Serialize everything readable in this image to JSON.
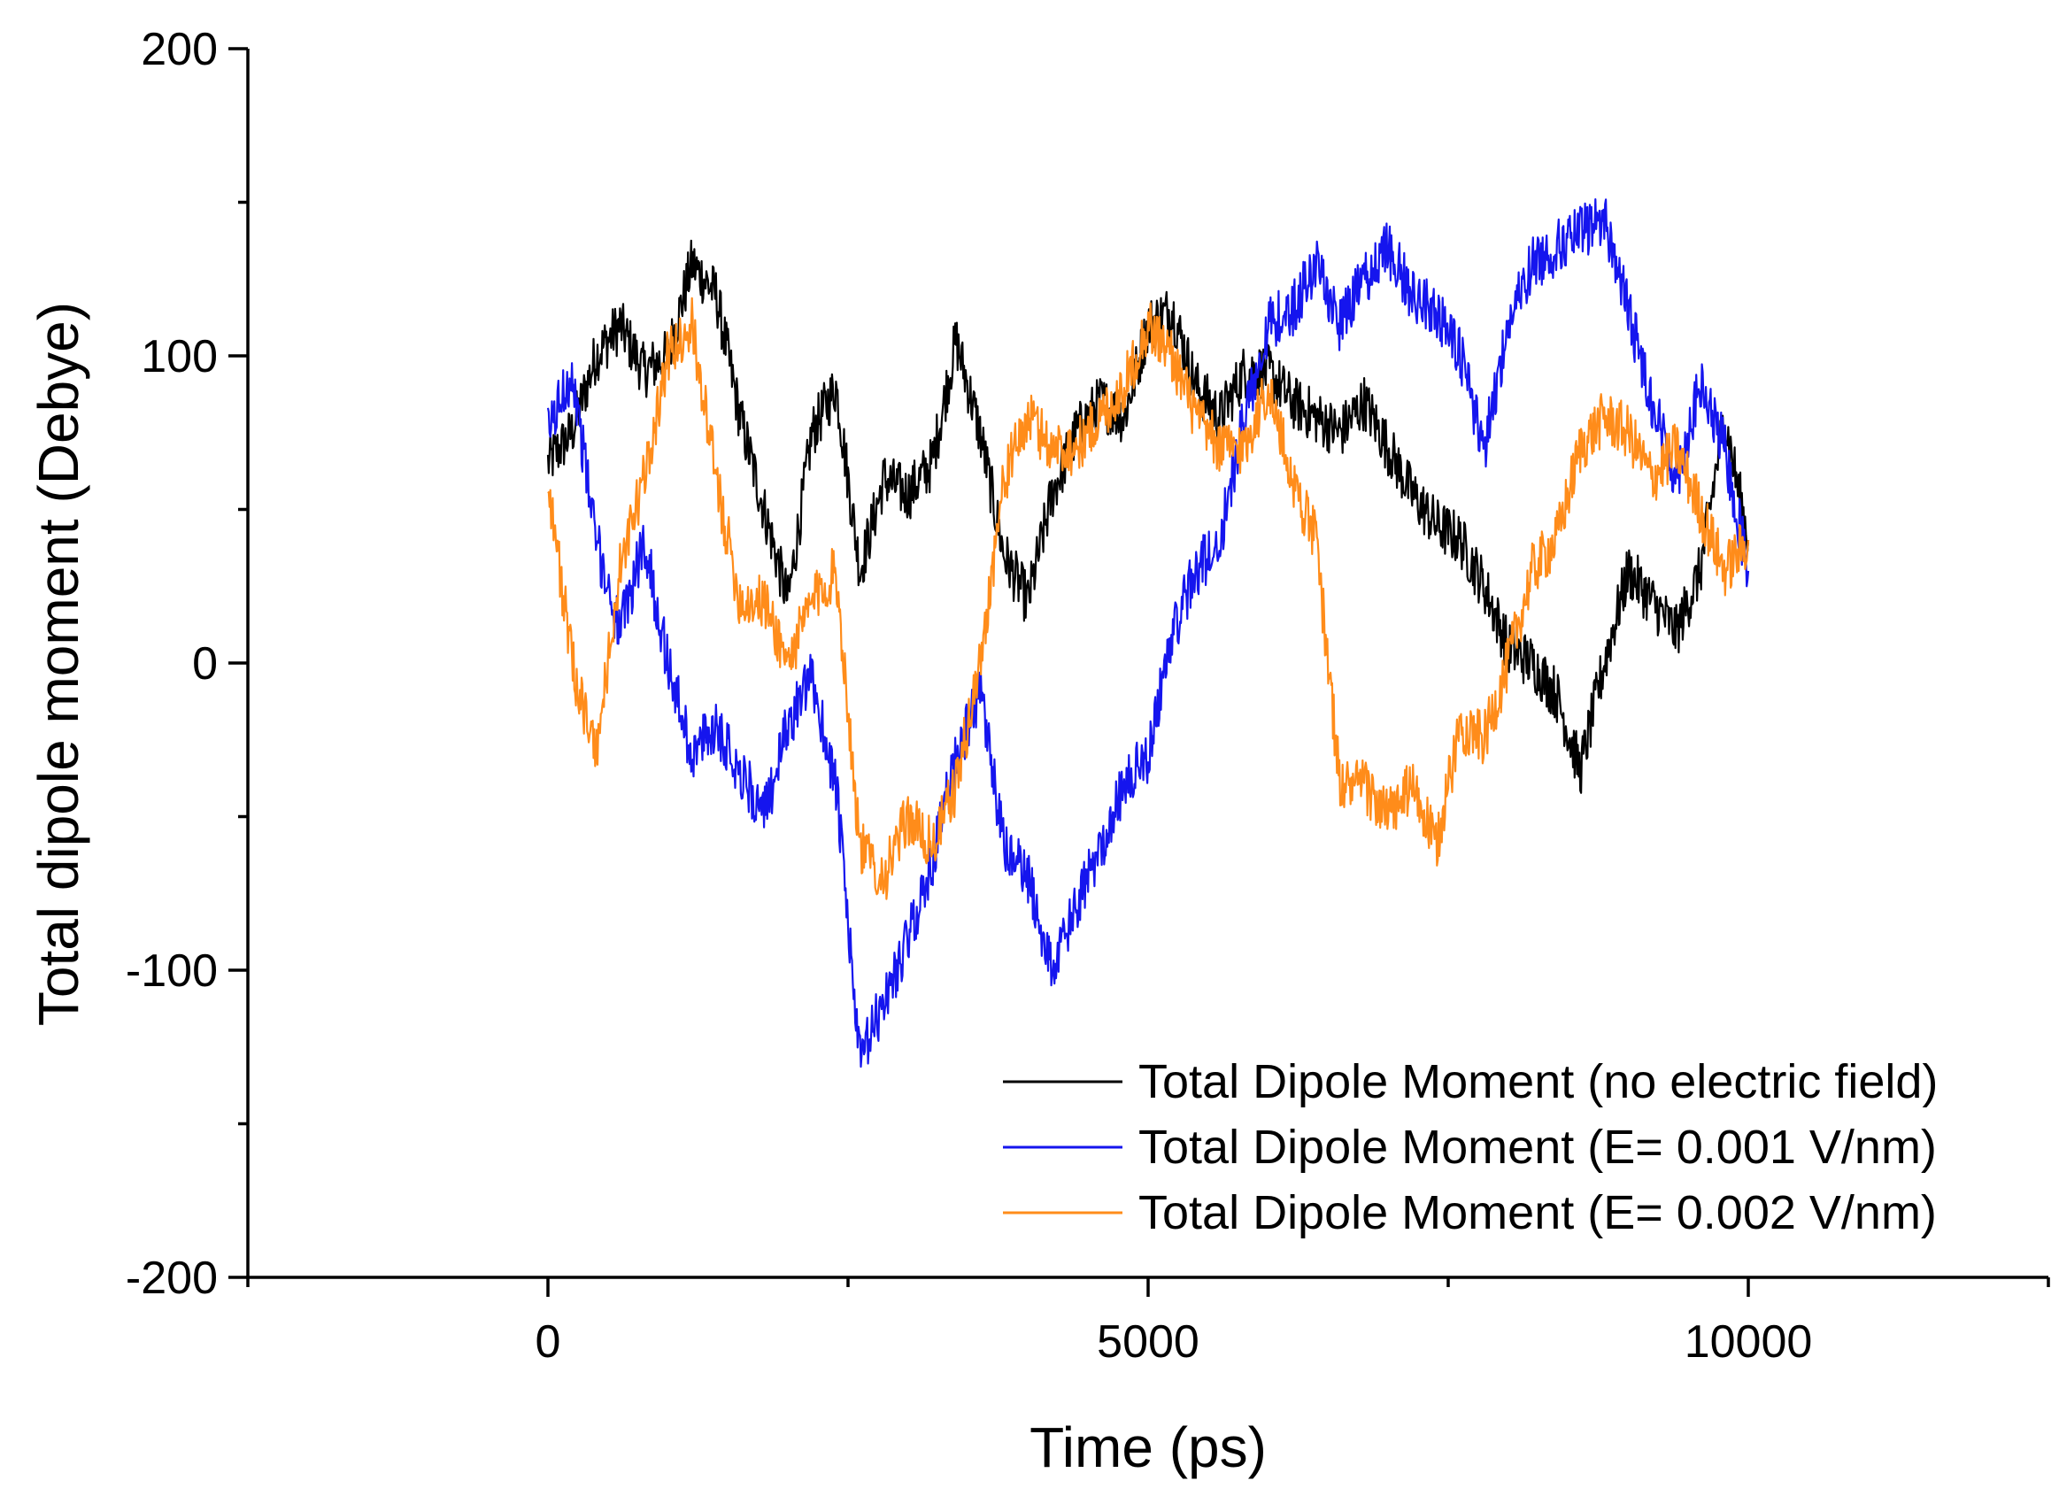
{
  "chart_data": {
    "type": "line",
    "title": "",
    "xlabel": "Time (ps)",
    "ylabel": "Total dipole moment (Debye)",
    "xlim": [
      -2500,
      12500
    ],
    "ylim": [
      -200,
      200
    ],
    "xticks": [
      0,
      5000,
      10000
    ],
    "yticks": [
      -200,
      -100,
      0,
      100,
      200
    ],
    "xtick_labels": [
      "0",
      "5000",
      "10000"
    ],
    "ytick_labels": [
      "-200",
      "-100",
      "0",
      "100",
      "200"
    ],
    "grid": false,
    "legend_position": "bottom-right",
    "noise_amplitude": 9,
    "series": [
      {
        "name": "Total Dipole Moment (no electric field)",
        "color": "#000000",
        "x": [
          0,
          200,
          400,
          600,
          800,
          1000,
          1200,
          1400,
          1600,
          1800,
          2000,
          2200,
          2400,
          2600,
          2800,
          3000,
          3200,
          3400,
          3600,
          3800,
          4000,
          4200,
          4400,
          4600,
          4800,
          5000,
          5200,
          5400,
          5600,
          5800,
          6000,
          6200,
          6400,
          6600,
          6800,
          7000,
          7200,
          7400,
          7600,
          7800,
          8000,
          8200,
          8400,
          8600,
          8800,
          9000,
          9200,
          9400,
          9600,
          9800,
          10000
        ],
        "values": [
          65,
          75,
          100,
          110,
          95,
          100,
          130,
          120,
          80,
          50,
          20,
          75,
          90,
          30,
          60,
          55,
          65,
          105,
          75,
          35,
          20,
          55,
          75,
          85,
          80,
          110,
          115,
          90,
          80,
          95,
          95,
          85,
          80,
          75,
          85,
          70,
          55,
          45,
          40,
          25,
          5,
          0,
          -10,
          -35,
          0,
          30,
          20,
          10,
          30,
          80,
          40
        ]
      },
      {
        "name": "Total Dipole Moment (E= 0.001 V/nm)",
        "color": "#1515ee",
        "x": [
          0,
          200,
          400,
          600,
          800,
          1000,
          1200,
          1400,
          1600,
          1800,
          2000,
          2200,
          2400,
          2600,
          2800,
          3000,
          3200,
          3400,
          3600,
          3800,
          4000,
          4200,
          4400,
          4600,
          4800,
          5000,
          5200,
          5400,
          5600,
          5800,
          6000,
          6200,
          6400,
          6600,
          6800,
          7000,
          7200,
          7400,
          7600,
          7800,
          8000,
          8200,
          8400,
          8600,
          8800,
          9000,
          9200,
          9400,
          9600,
          9800,
          10000
        ],
        "values": [
          75,
          95,
          40,
          10,
          40,
          0,
          -30,
          -20,
          -35,
          -50,
          -20,
          -5,
          -40,
          -130,
          -110,
          -90,
          -65,
          -30,
          -10,
          -60,
          -70,
          -100,
          -80,
          -60,
          -40,
          -30,
          10,
          30,
          40,
          80,
          110,
          115,
          130,
          110,
          125,
          135,
          120,
          115,
          100,
          70,
          110,
          130,
          135,
          140,
          145,
          115,
          85,
          60,
          90,
          70,
          30
        ]
      },
      {
        "name": "Total Dipole Moment (E= 0.002 V/nm)",
        "color": "#ff8c1a",
        "x": [
          0,
          200,
          400,
          600,
          800,
          1000,
          1200,
          1400,
          1600,
          1800,
          2000,
          2200,
          2400,
          2600,
          2800,
          3000,
          3200,
          3400,
          3600,
          3800,
          4000,
          4200,
          4400,
          4600,
          4800,
          5000,
          5200,
          5400,
          5600,
          5800,
          6000,
          6200,
          6400,
          6600,
          6800,
          7000,
          7200,
          7400,
          7600,
          7800,
          8000,
          8200,
          8400,
          8600,
          8800,
          9000,
          9200,
          9400,
          9600,
          9800,
          10000
        ],
        "values": [
          60,
          0,
          -30,
          30,
          60,
          100,
          110,
          60,
          20,
          20,
          0,
          20,
          30,
          -60,
          -70,
          -50,
          -60,
          -40,
          0,
          60,
          80,
          70,
          70,
          80,
          90,
          110,
          100,
          80,
          70,
          70,
          90,
          60,
          40,
          -40,
          -40,
          -50,
          -40,
          -60,
          -20,
          -25,
          0,
          30,
          40,
          70,
          80,
          75,
          60,
          70,
          50,
          30,
          40
        ]
      }
    ]
  }
}
